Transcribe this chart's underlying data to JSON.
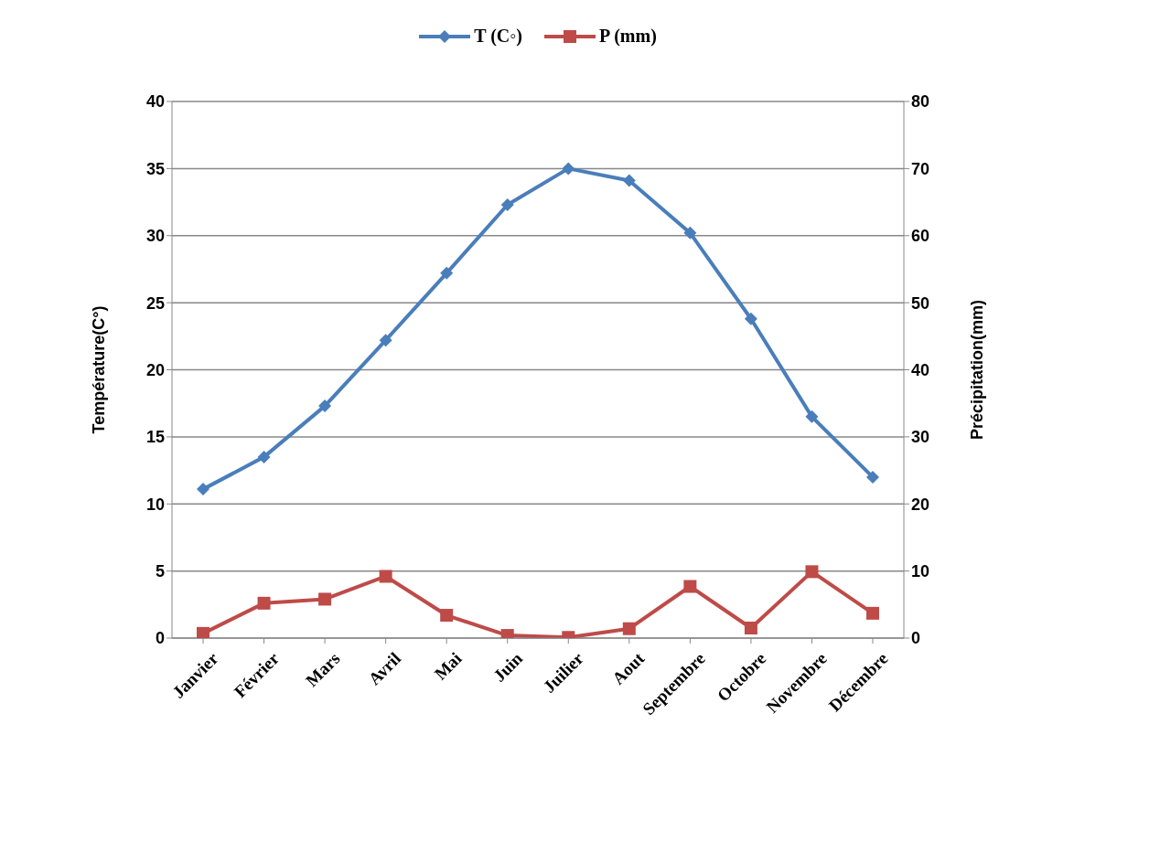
{
  "chart_data": {
    "type": "line",
    "categories": [
      "Janvier",
      "Février",
      "Mars",
      "Avril",
      "Mai",
      "Juin",
      "Juilier",
      "Aout",
      "Septembre",
      "Octobre",
      "Novembre",
      "Décembre"
    ],
    "series": [
      {
        "name": "T (C◦)",
        "color": "#4a7ebb",
        "marker": "diamond",
        "values": [
          11.1,
          13.5,
          17.3,
          22.2,
          27.2,
          32.3,
          35.0,
          34.1,
          30.2,
          23.8,
          16.5,
          12.0
        ]
      },
      {
        "name": "P (mm)",
        "color": "#be4b48",
        "marker": "square",
        "axis": "y2",
        "values": [
          0.7,
          5.2,
          5.8,
          9.2,
          3.4,
          0.4,
          0.1,
          1.4,
          7.7,
          1.5,
          9.9,
          3.7
        ]
      }
    ],
    "ylabel": "Température(C°)",
    "y2label": "Précipitation(mm)",
    "ylim": [
      0,
      40
    ],
    "yticks": [
      0,
      5,
      10,
      15,
      20,
      25,
      30,
      35,
      40
    ],
    "y2lim": [
      0,
      80
    ],
    "y2ticks": [
      0,
      10,
      20,
      30,
      40,
      50,
      60,
      70,
      80
    ],
    "grid": "y",
    "legend": "top",
    "line_style": "solid"
  }
}
